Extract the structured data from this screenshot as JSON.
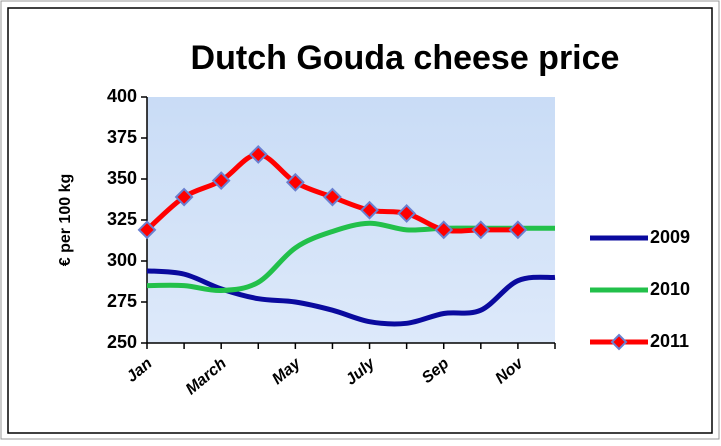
{
  "chart_data": {
    "type": "line",
    "title": "Dutch Gouda cheese price",
    "y_label": "€ per 100 kg",
    "categories": [
      "Jan",
      null,
      "March",
      null,
      "May",
      null,
      "July",
      null,
      "Sep",
      null,
      "Nov",
      null
    ],
    "series": [
      {
        "name": "2009",
        "color": "#0a0a9e",
        "values": [
          294,
          292,
          283,
          277,
          275,
          270,
          263,
          262,
          268,
          270,
          288,
          290
        ]
      },
      {
        "name": "2010",
        "color": "#22c04a",
        "values": [
          285,
          285,
          282,
          287,
          308,
          318,
          323,
          319,
          320,
          320,
          320,
          320
        ]
      },
      {
        "name": "2011",
        "color": "#ff0000",
        "marker_color": "#6a7fd0",
        "values": [
          319,
          339,
          349,
          365,
          348,
          339,
          331,
          329,
          319,
          319,
          319,
          null
        ]
      }
    ],
    "ylim": [
      250,
      400
    ],
    "yticks": [
      250,
      275,
      300,
      325,
      350,
      375,
      400
    ],
    "legend": "right"
  }
}
